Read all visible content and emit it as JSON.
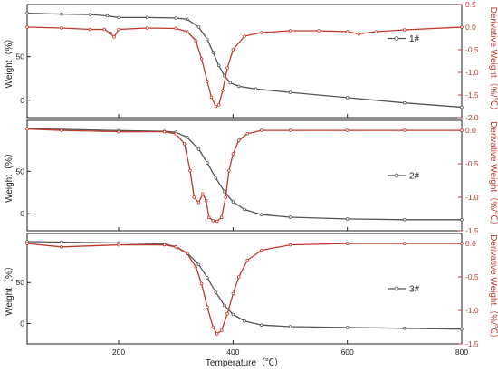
{
  "chart_data": [
    {
      "type": "line",
      "legend": "1#",
      "ylabel": "Weight（%）",
      "y2label": "Derivative Weight（%/℃）",
      "ylim": [
        -20,
        110
      ],
      "y2lim": [
        -2.0,
        0.5
      ],
      "yticks": [
        0,
        50
      ],
      "y2ticks": [
        "0.5",
        "0.0",
        "-0.5",
        "-1.0",
        "-1.5",
        "-2.0"
      ],
      "legend_position": "middle-right",
      "series": [
        {
          "color": "#555555",
          "x": [
            40,
            100,
            150,
            180,
            200,
            250,
            300,
            320,
            340,
            355,
            365,
            375,
            385,
            395,
            410,
            440,
            500,
            600,
            700,
            800
          ],
          "y": [
            100,
            99,
            98.5,
            97,
            95,
            95,
            94.5,
            93,
            84,
            70,
            55,
            40,
            28,
            20,
            16,
            13,
            9,
            3,
            -3,
            -8
          ]
        },
        {
          "color": "#c0392b",
          "x": [
            40,
            100,
            150,
            175,
            185,
            192,
            200,
            250,
            300,
            320,
            335,
            345,
            355,
            362,
            370,
            375,
            382,
            390,
            400,
            420,
            450,
            500,
            550,
            600,
            620,
            650,
            700,
            800
          ],
          "y": [
            0.0,
            -0.02,
            -0.05,
            -0.05,
            -0.13,
            -0.22,
            -0.05,
            -0.02,
            -0.03,
            -0.1,
            -0.3,
            -0.7,
            -1.2,
            -1.55,
            -1.75,
            -1.72,
            -1.4,
            -0.9,
            -0.5,
            -0.2,
            -0.12,
            -0.08,
            -0.08,
            -0.1,
            -0.15,
            -0.1,
            -0.06,
            0.0
          ]
        }
      ]
    },
    {
      "type": "line",
      "legend": "2#",
      "ylabel": "Weight（%）",
      "y2label": "Derivative Weight（%/℃）",
      "ylim": [
        -20,
        110
      ],
      "y2lim": [
        -1.5,
        0.15
      ],
      "yticks": [
        0,
        50
      ],
      "y2ticks": [
        "0.0",
        "-0.5",
        "-1.0",
        "-1.5"
      ],
      "legend_position": "middle-right",
      "series": [
        {
          "color": "#555555",
          "x": [
            40,
            100,
            200,
            280,
            300,
            320,
            340,
            355,
            370,
            385,
            400,
            420,
            450,
            500,
            600,
            700,
            800
          ],
          "y": [
            100,
            99.5,
            98,
            97,
            96,
            90,
            76,
            60,
            42,
            26,
            14,
            5,
            -1,
            -4,
            -6,
            -7,
            -7
          ]
        },
        {
          "color": "#c0392b",
          "x": [
            40,
            100,
            200,
            280,
            300,
            315,
            325,
            332,
            340,
            347,
            353,
            358,
            365,
            372,
            380,
            387,
            393,
            400,
            410,
            425,
            450,
            500,
            600,
            700,
            800
          ],
          "y": [
            0.02,
            0.0,
            -0.02,
            -0.02,
            -0.05,
            -0.2,
            -0.6,
            -1.0,
            -1.08,
            -0.95,
            -1.05,
            -1.3,
            -1.35,
            -1.36,
            -1.3,
            -1.0,
            -0.6,
            -0.35,
            -0.15,
            -0.05,
            0.0,
            0.0,
            0.0,
            0.0,
            0.0
          ]
        }
      ]
    },
    {
      "type": "line",
      "legend": "3#",
      "ylabel": "Weight（%）",
      "y2label": "Derivative Weight（%/℃）",
      "ylim": [
        -25,
        110
      ],
      "y2lim": [
        -1.5,
        0.15
      ],
      "yticks": [
        0,
        50
      ],
      "y2ticks": [
        "0.0",
        "-0.5",
        "-1.0",
        "-1.5"
      ],
      "legend_position": "middle-right",
      "series": [
        {
          "color": "#555555",
          "x": [
            40,
            100,
            200,
            280,
            300,
            320,
            340,
            355,
            370,
            385,
            400,
            420,
            450,
            500,
            600,
            700,
            800
          ],
          "y": [
            100,
            99.5,
            98.5,
            97,
            94,
            86,
            72,
            56,
            38,
            22,
            11,
            3,
            -2,
            -4,
            -5,
            -6,
            -7
          ]
        },
        {
          "color": "#c0392b",
          "x": [
            40,
            100,
            200,
            280,
            300,
            320,
            335,
            345,
            355,
            365,
            372,
            380,
            390,
            400,
            410,
            425,
            450,
            500,
            600,
            700,
            800
          ],
          "y": [
            0.0,
            -0.05,
            -0.02,
            -0.02,
            -0.05,
            -0.15,
            -0.35,
            -0.6,
            -0.95,
            -1.25,
            -1.35,
            -1.3,
            -1.05,
            -0.75,
            -0.5,
            -0.25,
            -0.1,
            -0.02,
            0.0,
            0.0,
            0.0
          ]
        }
      ]
    }
  ],
  "xaxis": {
    "xlim": [
      40,
      800
    ],
    "xticks": [
      200,
      400,
      600,
      800
    ],
    "xlabel": "Temperature（℃）"
  }
}
